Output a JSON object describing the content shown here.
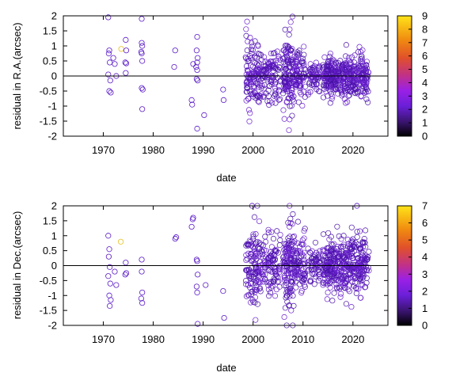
{
  "chart_data": [
    {
      "type": "scatter",
      "xlabel": "date",
      "ylabel": "residual in R.A.(arcsec)",
      "xlim": [
        1962,
        2027
      ],
      "ylim": [
        -2,
        2
      ],
      "xticks": [
        "1970",
        "1980",
        "1990",
        "2000",
        "2010",
        "2020"
      ],
      "yticks": [
        "2",
        "1.5",
        "1",
        "0.5",
        "0",
        "-0.5",
        "-1",
        "-1.5",
        "-2"
      ],
      "zero_line": true,
      "marker": "open circle",
      "colorbar": {
        "palette": "black-purple-red-orange-yellow",
        "range": [
          0,
          9
        ],
        "ticks": [
          "9",
          "8",
          "7",
          "6",
          "5",
          "4",
          "3",
          "2",
          "1",
          "0"
        ]
      },
      "points": [
        {
          "x": 1971.0,
          "y": 1.95,
          "c": 1
        },
        {
          "x": 1971.2,
          "y": 0.85,
          "c": 1
        },
        {
          "x": 1971.1,
          "y": 0.75,
          "c": 1
        },
        {
          "x": 1971.3,
          "y": 0.45,
          "c": 1
        },
        {
          "x": 1971.0,
          "y": 0.05,
          "c": 1
        },
        {
          "x": 1971.4,
          "y": -0.15,
          "c": 1
        },
        {
          "x": 1971.2,
          "y": -0.5,
          "c": 1
        },
        {
          "x": 1971.5,
          "y": -0.55,
          "c": 1
        },
        {
          "x": 1972.0,
          "y": 0.6,
          "c": 1
        },
        {
          "x": 1972.3,
          "y": 0.4,
          "c": 1
        },
        {
          "x": 1972.6,
          "y": 0.0,
          "c": 1
        },
        {
          "x": 1973.6,
          "y": 0.9,
          "c": 8
        },
        {
          "x": 1974.5,
          "y": 1.2,
          "c": 1
        },
        {
          "x": 1974.6,
          "y": 0.85,
          "c": 1
        },
        {
          "x": 1974.4,
          "y": 0.45,
          "c": 1
        },
        {
          "x": 1974.6,
          "y": 0.42,
          "c": 1
        },
        {
          "x": 1974.5,
          "y": 0.1,
          "c": 1
        },
        {
          "x": 1977.7,
          "y": 1.9,
          "c": 1
        },
        {
          "x": 1977.7,
          "y": 1.1,
          "c": 1
        },
        {
          "x": 1977.8,
          "y": 1.0,
          "c": 1
        },
        {
          "x": 1977.6,
          "y": 0.8,
          "c": 1
        },
        {
          "x": 1977.7,
          "y": 0.75,
          "c": 1
        },
        {
          "x": 1977.8,
          "y": 0.5,
          "c": 1
        },
        {
          "x": 1977.7,
          "y": -0.4,
          "c": 1
        },
        {
          "x": 1977.9,
          "y": -0.45,
          "c": 1
        },
        {
          "x": 1977.8,
          "y": -1.1,
          "c": 1
        },
        {
          "x": 1984.4,
          "y": 0.85,
          "c": 1
        },
        {
          "x": 1984.2,
          "y": 0.3,
          "c": 1
        },
        {
          "x": 1987.7,
          "y": -0.8,
          "c": 1
        },
        {
          "x": 1987.8,
          "y": -0.95,
          "c": 1
        },
        {
          "x": 1988.0,
          "y": 0.4,
          "c": 1
        },
        {
          "x": 1988.8,
          "y": 1.3,
          "c": 1
        },
        {
          "x": 1988.7,
          "y": 0.85,
          "c": 1
        },
        {
          "x": 1988.9,
          "y": 0.6,
          "c": 1
        },
        {
          "x": 1988.8,
          "y": 0.45,
          "c": 1
        },
        {
          "x": 1988.6,
          "y": 0.3,
          "c": 1
        },
        {
          "x": 1988.8,
          "y": 0.2,
          "c": 1
        },
        {
          "x": 1988.7,
          "y": -0.1,
          "c": 1
        },
        {
          "x": 1988.9,
          "y": -0.15,
          "c": 1
        },
        {
          "x": 1988.8,
          "y": -1.75,
          "c": 1
        },
        {
          "x": 1990.2,
          "y": -1.3,
          "c": 1
        },
        {
          "x": 1994.0,
          "y": -0.45,
          "c": 1
        },
        {
          "x": 1994.1,
          "y": -0.8,
          "c": 1
        }
      ],
      "clusters": [
        {
          "x_range": [
            1998.5,
            2001.2
          ],
          "y_spread": 0.55,
          "n": 110
        },
        {
          "x_range": [
            2001.2,
            2005.5
          ],
          "y_spread": 0.45,
          "n": 120
        },
        {
          "x_range": [
            2006.0,
            2008.0
          ],
          "y_spread": 0.65,
          "n": 120
        },
        {
          "x_range": [
            2008.0,
            2010.5
          ],
          "y_spread": 0.4,
          "n": 90
        },
        {
          "x_range": [
            2011.0,
            2013.5
          ],
          "y_spread": 0.25,
          "n": 60
        },
        {
          "x_range": [
            2014.0,
            2017.0
          ],
          "y_spread": 0.3,
          "n": 150
        },
        {
          "x_range": [
            2017.0,
            2023.2
          ],
          "y_spread": 0.35,
          "n": 260
        }
      ]
    },
    {
      "type": "scatter",
      "xlabel": "date",
      "ylabel": "residual in Dec.(arcsec)",
      "xlim": [
        1962,
        2027
      ],
      "ylim": [
        -2,
        2
      ],
      "xticks": [
        "1970",
        "1980",
        "1990",
        "2000",
        "2010",
        "2020"
      ],
      "yticks": [
        "2",
        "1.5",
        "1",
        "0.5",
        "0",
        "-0.5",
        "-1",
        "-1.5",
        "-2"
      ],
      "zero_line": true,
      "marker": "open circle",
      "colorbar": {
        "palette": "black-purple-red-orange-yellow",
        "range": [
          0,
          7
        ],
        "ticks": [
          "7",
          "6",
          "5",
          "4",
          "3",
          "2",
          "1",
          "0"
        ]
      },
      "points": [
        {
          "x": 1971.0,
          "y": 1.0,
          "c": 1
        },
        {
          "x": 1971.2,
          "y": 0.55,
          "c": 1
        },
        {
          "x": 1971.1,
          "y": 0.3,
          "c": 1
        },
        {
          "x": 1971.3,
          "y": -0.05,
          "c": 1
        },
        {
          "x": 1971.0,
          "y": -0.35,
          "c": 1
        },
        {
          "x": 1971.4,
          "y": -0.6,
          "c": 1
        },
        {
          "x": 1971.2,
          "y": -1.0,
          "c": 1
        },
        {
          "x": 1971.5,
          "y": -1.15,
          "c": 1
        },
        {
          "x": 1971.3,
          "y": -1.35,
          "c": 1
        },
        {
          "x": 1972.3,
          "y": -0.2,
          "c": 1
        },
        {
          "x": 1972.6,
          "y": -0.65,
          "c": 1
        },
        {
          "x": 1973.5,
          "y": 0.8,
          "c": 6
        },
        {
          "x": 1974.5,
          "y": 0.1,
          "c": 1
        },
        {
          "x": 1974.6,
          "y": -0.25,
          "c": 1
        },
        {
          "x": 1974.4,
          "y": -0.3,
          "c": 1
        },
        {
          "x": 1977.7,
          "y": 0.2,
          "c": 1
        },
        {
          "x": 1977.7,
          "y": -0.2,
          "c": 1
        },
        {
          "x": 1977.8,
          "y": -0.9,
          "c": 1
        },
        {
          "x": 1977.6,
          "y": -1.1,
          "c": 1
        },
        {
          "x": 1977.8,
          "y": -1.25,
          "c": 1
        },
        {
          "x": 1984.4,
          "y": 0.9,
          "c": 1
        },
        {
          "x": 1984.6,
          "y": 0.95,
          "c": 1
        },
        {
          "x": 1987.7,
          "y": 1.3,
          "c": 1
        },
        {
          "x": 1987.9,
          "y": 1.55,
          "c": 1
        },
        {
          "x": 1988.0,
          "y": 1.6,
          "c": 1
        },
        {
          "x": 1988.7,
          "y": 0.2,
          "c": 1
        },
        {
          "x": 1988.8,
          "y": 0.15,
          "c": 1
        },
        {
          "x": 1988.9,
          "y": -0.3,
          "c": 1
        },
        {
          "x": 1988.7,
          "y": -0.7,
          "c": 1
        },
        {
          "x": 1988.8,
          "y": -0.9,
          "c": 1
        },
        {
          "x": 1988.9,
          "y": -1.95,
          "c": 1
        },
        {
          "x": 1990.5,
          "y": -0.65,
          "c": 1
        },
        {
          "x": 1994.0,
          "y": -0.85,
          "c": 1
        },
        {
          "x": 1994.2,
          "y": -1.75,
          "c": 1
        },
        {
          "x": 1999.8,
          "y": 2.0,
          "c": 1
        },
        {
          "x": 2020.8,
          "y": 2.0,
          "c": 1
        }
      ],
      "clusters": [
        {
          "x_range": [
            1998.5,
            2001.2
          ],
          "y_spread": 0.65,
          "n": 110
        },
        {
          "x_range": [
            2001.2,
            2005.5
          ],
          "y_spread": 0.55,
          "n": 120
        },
        {
          "x_range": [
            2006.0,
            2008.0
          ],
          "y_spread": 0.75,
          "n": 120
        },
        {
          "x_range": [
            2008.0,
            2010.5
          ],
          "y_spread": 0.5,
          "n": 90
        },
        {
          "x_range": [
            2011.0,
            2013.5
          ],
          "y_spread": 0.3,
          "n": 60
        },
        {
          "x_range": [
            2014.0,
            2017.0
          ],
          "y_spread": 0.4,
          "n": 150
        },
        {
          "x_range": [
            2017.0,
            2023.2
          ],
          "y_spread": 0.45,
          "n": 260
        }
      ]
    }
  ]
}
